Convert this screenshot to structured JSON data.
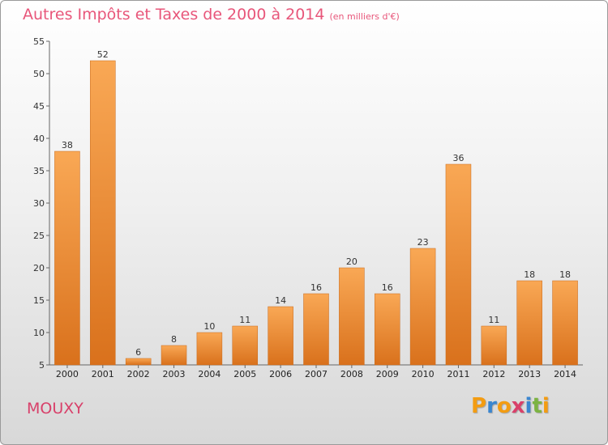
{
  "chart_data": {
    "type": "bar",
    "title": "Autres Impôts et Taxes de 2000 à 2014",
    "subtitle": "(en milliers d'€)",
    "categories": [
      "2000",
      "2001",
      "2002",
      "2003",
      "2004",
      "2005",
      "2006",
      "2007",
      "2008",
      "2009",
      "2010",
      "2011",
      "2012",
      "2013",
      "2014"
    ],
    "values": [
      38,
      52,
      6,
      8,
      10,
      11,
      14,
      16,
      20,
      16,
      23,
      36,
      11,
      18,
      18
    ],
    "ylim": [
      5,
      55
    ],
    "yticks": [
      5,
      10,
      15,
      20,
      25,
      30,
      35,
      40,
      45,
      50,
      55
    ],
    "xlabel": "",
    "ylabel": "",
    "grid": false,
    "legend": "none",
    "bar_color_top": "#f9a855",
    "bar_color_bottom": "#d9711c"
  },
  "footer": {
    "commune": "MOUXY",
    "logo_letters": [
      "P",
      "r",
      "o",
      "x",
      "i",
      "t",
      "i"
    ],
    "logo_colors": [
      "#f39c12",
      "#3a86d0",
      "#f39c12",
      "#d9406a",
      "#3a86d0",
      "#7cb342",
      "#f39c12"
    ]
  }
}
